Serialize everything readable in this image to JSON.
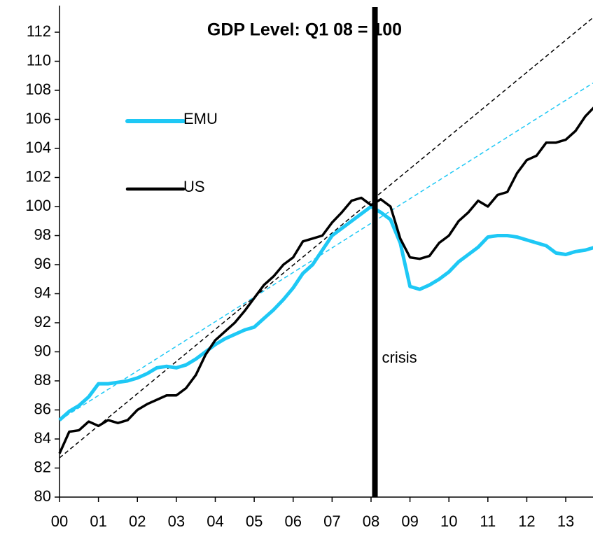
{
  "chart_data": {
    "type": "line",
    "title": "GDP Level: Q1 08 = 100",
    "x": [
      0,
      0.25,
      0.5,
      0.75,
      1,
      1.25,
      1.5,
      1.75,
      2,
      2.25,
      2.5,
      2.75,
      3,
      3.25,
      3.5,
      3.75,
      4,
      4.25,
      4.5,
      4.75,
      5,
      5.25,
      5.5,
      5.75,
      6,
      6.25,
      6.5,
      6.75,
      7,
      7.25,
      7.5,
      7.75,
      8,
      8.25,
      8.5,
      8.75,
      9,
      9.25,
      9.5,
      9.75,
      10,
      10.25,
      10.5,
      10.75,
      11,
      11.25,
      11.5,
      11.75,
      12,
      12.25,
      12.5,
      12.75,
      13,
      13.25,
      13.5,
      13.75
    ],
    "series": [
      {
        "name": "EMU",
        "color": "#1ec8f5",
        "values": [
          85.3,
          85.9,
          86.3,
          86.9,
          87.8,
          87.8,
          87.9,
          88.0,
          88.2,
          88.5,
          88.9,
          89.0,
          88.9,
          89.1,
          89.5,
          90.0,
          90.5,
          90.9,
          91.2,
          91.5,
          91.7,
          92.3,
          92.9,
          93.6,
          94.4,
          95.4,
          96.0,
          97.0,
          98.0,
          98.5,
          99.0,
          99.5,
          100.0,
          99.6,
          99.1,
          97.5,
          94.5,
          94.3,
          94.6,
          95.0,
          95.5,
          96.2,
          96.7,
          97.2,
          97.9,
          98.0,
          98.0,
          97.9,
          97.7,
          97.5,
          97.3,
          96.8,
          96.7,
          96.9,
          97.0,
          97.2
        ]
      },
      {
        "name": "US",
        "color": "#000000",
        "values": [
          83.0,
          84.5,
          84.6,
          85.2,
          84.9,
          85.3,
          85.1,
          85.3,
          86.0,
          86.4,
          86.7,
          87.0,
          87.0,
          87.5,
          88.4,
          89.8,
          90.8,
          91.4,
          92.0,
          92.8,
          93.7,
          94.6,
          95.2,
          96.0,
          96.5,
          97.6,
          97.8,
          98.0,
          98.9,
          99.6,
          100.4,
          100.6,
          100.1,
          100.5,
          100.0,
          97.8,
          96.5,
          96.4,
          96.6,
          97.5,
          98.0,
          99.0,
          99.6,
          100.4,
          100.0,
          100.8,
          101.0,
          102.3,
          103.2,
          103.5,
          104.4,
          104.4,
          104.6,
          105.2,
          106.2,
          106.9
        ]
      }
    ],
    "trend_lines": [
      {
        "color": "#000000",
        "x": [
          0,
          13.7
        ],
        "values": [
          82.7,
          113.0
        ]
      },
      {
        "color": "#1ec8f5",
        "x": [
          0,
          13.7
        ],
        "values": [
          85.3,
          108.5
        ]
      }
    ],
    "annotation": {
      "x": 8.1,
      "label": "crisis"
    },
    "xlim": [
      0,
      13.7
    ],
    "xticks": [
      {
        "value": 0,
        "label": "00"
      },
      {
        "value": 1,
        "label": "01"
      },
      {
        "value": 2,
        "label": "02"
      },
      {
        "value": 3,
        "label": "03"
      },
      {
        "value": 4,
        "label": "04"
      },
      {
        "value": 5,
        "label": "05"
      },
      {
        "value": 6,
        "label": "06"
      },
      {
        "value": 7,
        "label": "07"
      },
      {
        "value": 8,
        "label": "08"
      },
      {
        "value": 9,
        "label": "09"
      },
      {
        "value": 10,
        "label": "10"
      },
      {
        "value": 11,
        "label": "11"
      },
      {
        "value": 12,
        "label": "12"
      },
      {
        "value": 13,
        "label": "13"
      }
    ],
    "ylim": [
      80,
      112
    ],
    "yticks": [
      80,
      82,
      84,
      86,
      88,
      90,
      92,
      94,
      96,
      98,
      100,
      102,
      104,
      106,
      108,
      110,
      112
    ],
    "legend": "upper left"
  }
}
